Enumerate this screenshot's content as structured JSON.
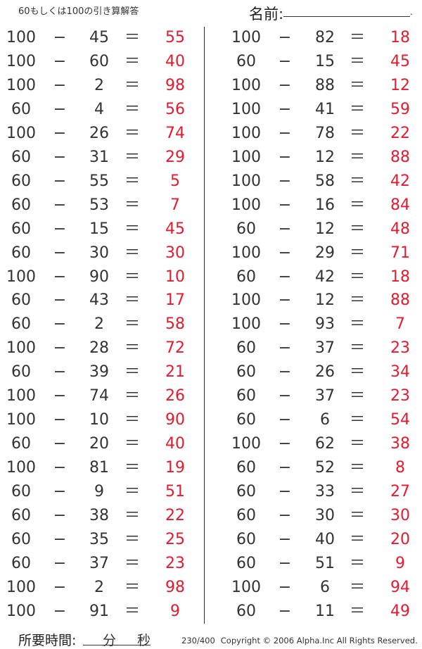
{
  "header": {
    "title": "60もしくは100の引き算解答",
    "name_label": "名前:",
    "name_end": "."
  },
  "operators": {
    "minus": "−",
    "equals": "＝"
  },
  "colors": {
    "text": "#333333",
    "answer": "#e8192c"
  },
  "left_column": [
    [
      "100",
      "45",
      "55"
    ],
    [
      "100",
      "60",
      "40"
    ],
    [
      "100",
      "2",
      "98"
    ],
    [
      "60",
      "4",
      "56"
    ],
    [
      "100",
      "26",
      "74"
    ],
    [
      "60",
      "31",
      "29"
    ],
    [
      "60",
      "55",
      "5"
    ],
    [
      "60",
      "53",
      "7"
    ],
    [
      "60",
      "15",
      "45"
    ],
    [
      "60",
      "30",
      "30"
    ],
    [
      "100",
      "90",
      "10"
    ],
    [
      "60",
      "43",
      "17"
    ],
    [
      "60",
      "2",
      "58"
    ],
    [
      "100",
      "28",
      "72"
    ],
    [
      "60",
      "39",
      "21"
    ],
    [
      "100",
      "74",
      "26"
    ],
    [
      "100",
      "10",
      "90"
    ],
    [
      "60",
      "20",
      "40"
    ],
    [
      "100",
      "81",
      "19"
    ],
    [
      "60",
      "9",
      "51"
    ],
    [
      "60",
      "38",
      "22"
    ],
    [
      "60",
      "35",
      "25"
    ],
    [
      "60",
      "37",
      "23"
    ],
    [
      "100",
      "2",
      "98"
    ],
    [
      "100",
      "91",
      "9"
    ]
  ],
  "right_column": [
    [
      "100",
      "82",
      "18"
    ],
    [
      "60",
      "15",
      "45"
    ],
    [
      "100",
      "88",
      "12"
    ],
    [
      "100",
      "41",
      "59"
    ],
    [
      "100",
      "78",
      "22"
    ],
    [
      "100",
      "12",
      "88"
    ],
    [
      "100",
      "58",
      "42"
    ],
    [
      "100",
      "16",
      "84"
    ],
    [
      "60",
      "12",
      "48"
    ],
    [
      "100",
      "29",
      "71"
    ],
    [
      "60",
      "42",
      "18"
    ],
    [
      "100",
      "12",
      "88"
    ],
    [
      "100",
      "93",
      "7"
    ],
    [
      "60",
      "37",
      "23"
    ],
    [
      "60",
      "26",
      "34"
    ],
    [
      "60",
      "37",
      "23"
    ],
    [
      "60",
      "6",
      "54"
    ],
    [
      "100",
      "62",
      "38"
    ],
    [
      "60",
      "52",
      "8"
    ],
    [
      "60",
      "33",
      "27"
    ],
    [
      "60",
      "30",
      "30"
    ],
    [
      "60",
      "40",
      "20"
    ],
    [
      "60",
      "51",
      "9"
    ],
    [
      "100",
      "6",
      "94"
    ],
    [
      "60",
      "11",
      "49"
    ]
  ],
  "footer": {
    "time_label": "所要時間:",
    "minutes": "分",
    "seconds": "秒",
    "page": "230/400",
    "copyright": "Copyright © 2006 Alpha.Inc All Rights Reserved."
  }
}
